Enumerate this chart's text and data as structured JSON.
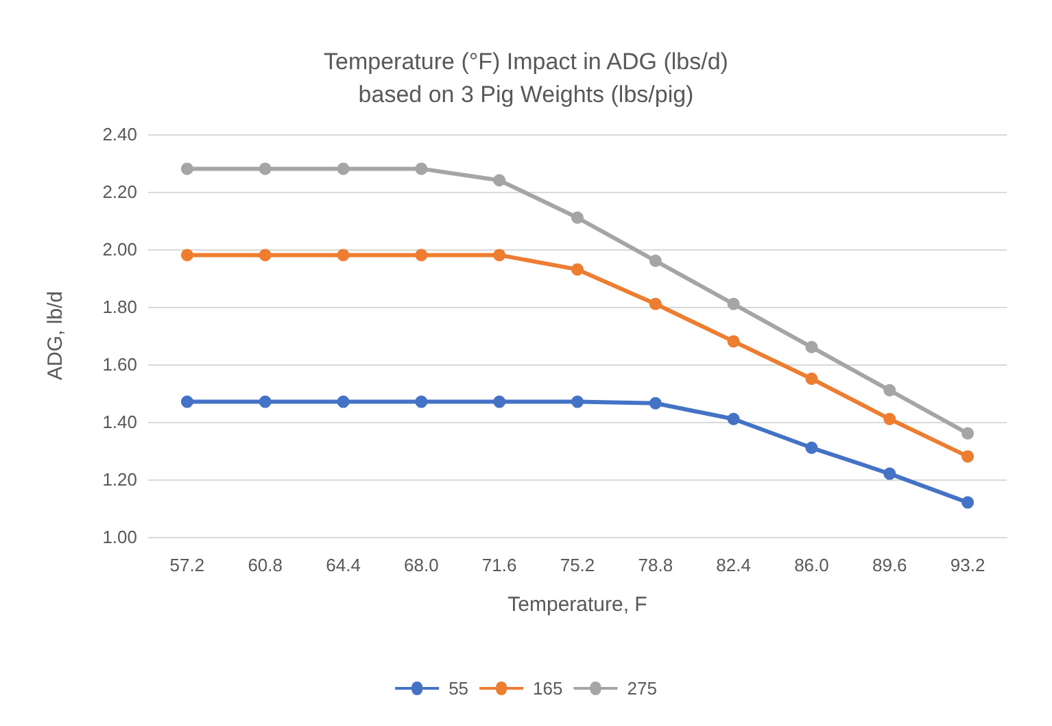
{
  "chart_data": {
    "type": "line",
    "title": "Temperature (°F) Impact in ADG (lbs/d)\nbased on 3 Pig Weights (lbs/pig)",
    "xlabel": "Temperature, F",
    "ylabel": "ADG, lb/d",
    "categories": [
      "57.2",
      "60.8",
      "64.4",
      "68.0",
      "71.6",
      "75.2",
      "78.8",
      "82.4",
      "86.0",
      "89.6",
      "93.2"
    ],
    "series": [
      {
        "name": "55",
        "color": "#4472c4",
        "values": [
          1.47,
          1.47,
          1.47,
          1.47,
          1.47,
          1.47,
          1.465,
          1.41,
          1.31,
          1.22,
          1.12
        ]
      },
      {
        "name": "165",
        "color": "#ed7d31",
        "values": [
          1.98,
          1.98,
          1.98,
          1.98,
          1.98,
          1.93,
          1.81,
          1.68,
          1.55,
          1.41,
          1.28
        ]
      },
      {
        "name": "275",
        "color": "#a5a5a5",
        "values": [
          2.28,
          2.28,
          2.28,
          2.28,
          2.24,
          2.11,
          1.96,
          1.81,
          1.66,
          1.51,
          1.36
        ]
      }
    ],
    "ylim": [
      1.0,
      2.4
    ],
    "yticks": [
      {
        "value": 1.0,
        "label": "1.00"
      },
      {
        "value": 1.2,
        "label": "1.20"
      },
      {
        "value": 1.4,
        "label": "1.40"
      },
      {
        "value": 1.6,
        "label": "1.60"
      },
      {
        "value": 1.8,
        "label": "1.80"
      },
      {
        "value": 2.0,
        "label": "2.00"
      },
      {
        "value": 2.2,
        "label": "2.20"
      },
      {
        "value": 2.4,
        "label": "2.40"
      }
    ],
    "grid": "y",
    "legend": "bottom",
    "marker": "circle",
    "line_style": "solid"
  }
}
